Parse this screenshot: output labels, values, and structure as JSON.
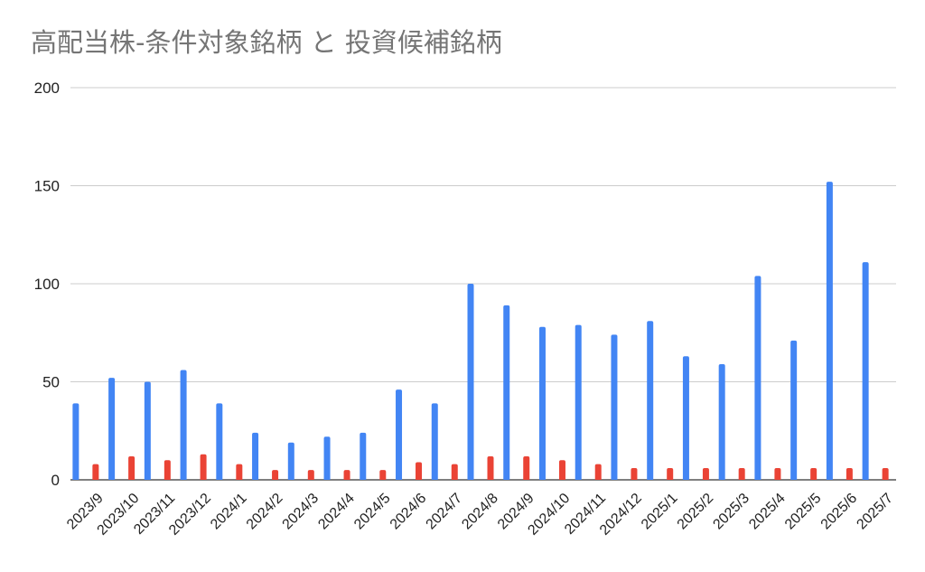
{
  "chart_data": {
    "type": "bar",
    "title": "高配当株-条件対象銘柄 と 投資候補銘柄",
    "xlabel": "",
    "ylabel": "",
    "ylim": [
      0,
      200
    ],
    "yticks": [
      0,
      50,
      100,
      150,
      200
    ],
    "grid": true,
    "legend": "none",
    "categories": [
      "2023/9",
      "2023/10",
      "2023/11",
      "2023/12",
      "2024/1",
      "2024/2",
      "2024/3",
      "2024/4",
      "2024/5",
      "2024/6",
      "2024/7",
      "2024/8",
      "2024/9",
      "2024/10",
      "2024/11",
      "2024/12",
      "2025/1",
      "2025/2",
      "2025/3",
      "2025/4",
      "2025/5",
      "2025/6",
      "2025/7"
    ],
    "series": [
      {
        "color": "#4285f4",
        "values": [
          39,
          52,
          50,
          56,
          39,
          24,
          19,
          22,
          24,
          46,
          39,
          100,
          89,
          78,
          79,
          74,
          81,
          63,
          59,
          104,
          71,
          152,
          111
        ]
      },
      {
        "color": "#ea4335",
        "values": [
          8,
          12,
          10,
          13,
          8,
          5,
          5,
          5,
          5,
          9,
          8,
          12,
          12,
          10,
          8,
          6,
          6,
          6,
          6,
          6,
          6,
          6,
          6
        ]
      }
    ]
  }
}
